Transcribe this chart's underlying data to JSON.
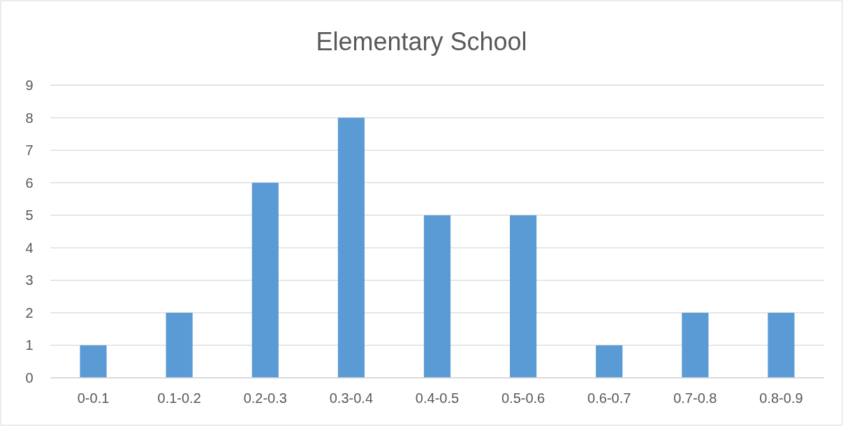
{
  "chart_data": {
    "type": "bar",
    "title": "Elementary School",
    "categories": [
      "0-0.1",
      "0.1-0.2",
      "0.2-0.3",
      "0.3-0.4",
      "0.4-0.5",
      "0.5-0.6",
      "0.6-0.7",
      "0.7-0.8",
      "0.8-0.9"
    ],
    "values": [
      1,
      2,
      6,
      8,
      5,
      5,
      1,
      2,
      2
    ],
    "color": "#5b9bd5",
    "ylim": [
      0,
      9
    ],
    "yticks": [
      0,
      1,
      2,
      3,
      4,
      5,
      6,
      7,
      8,
      9
    ],
    "grid": "y"
  }
}
